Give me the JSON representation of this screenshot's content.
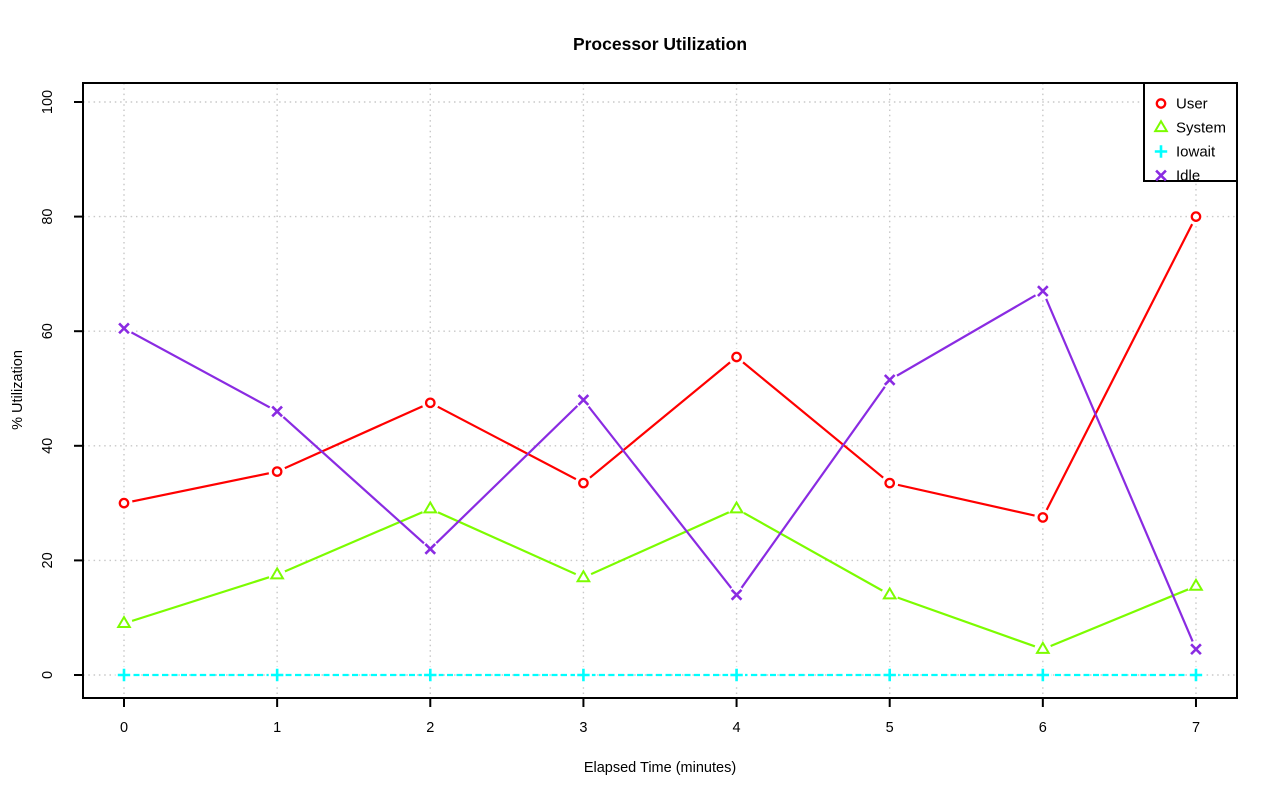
{
  "chart_data": {
    "type": "line",
    "title": "Processor Utilization",
    "xlabel": "Elapsed Time (minutes)",
    "ylabel": "% Utilization",
    "x": [
      0,
      1,
      2,
      3,
      4,
      5,
      6,
      7
    ],
    "x_tick_labels": [
      "0",
      "1",
      "2",
      "3",
      "4",
      "5",
      "6",
      "7"
    ],
    "y_ticks": [
      0,
      20,
      40,
      60,
      80,
      100
    ],
    "y_tick_labels": [
      "0",
      "20",
      "40",
      "60",
      "80",
      "100"
    ],
    "xlim": [
      0,
      7
    ],
    "ylim": [
      0,
      100
    ],
    "grid": {
      "style": "dotted",
      "color": "#c8c8c8"
    },
    "frame_color": "#000000",
    "background": "#ffffff",
    "legend_position": "top-right",
    "series": [
      {
        "name": "User",
        "color": "#ff0000",
        "marker": "circle",
        "line": "solid",
        "values": [
          30,
          35.5,
          47.5,
          33.5,
          55.5,
          33.5,
          27.5,
          80
        ]
      },
      {
        "name": "System",
        "color": "#7cfc00",
        "marker": "triangle",
        "line": "solid",
        "values": [
          9,
          17.5,
          29,
          17,
          29,
          14,
          4.5,
          15.5
        ]
      },
      {
        "name": "Iowait",
        "color": "#00ffff",
        "marker": "plus",
        "line": "dashed",
        "values": [
          0,
          0,
          0,
          0,
          0,
          0,
          0,
          0
        ]
      },
      {
        "name": "Idle",
        "color": "#8a2be2",
        "marker": "x",
        "line": "solid",
        "values": [
          60.5,
          46,
          22,
          48,
          14,
          51.5,
          67,
          4.5
        ]
      }
    ]
  }
}
